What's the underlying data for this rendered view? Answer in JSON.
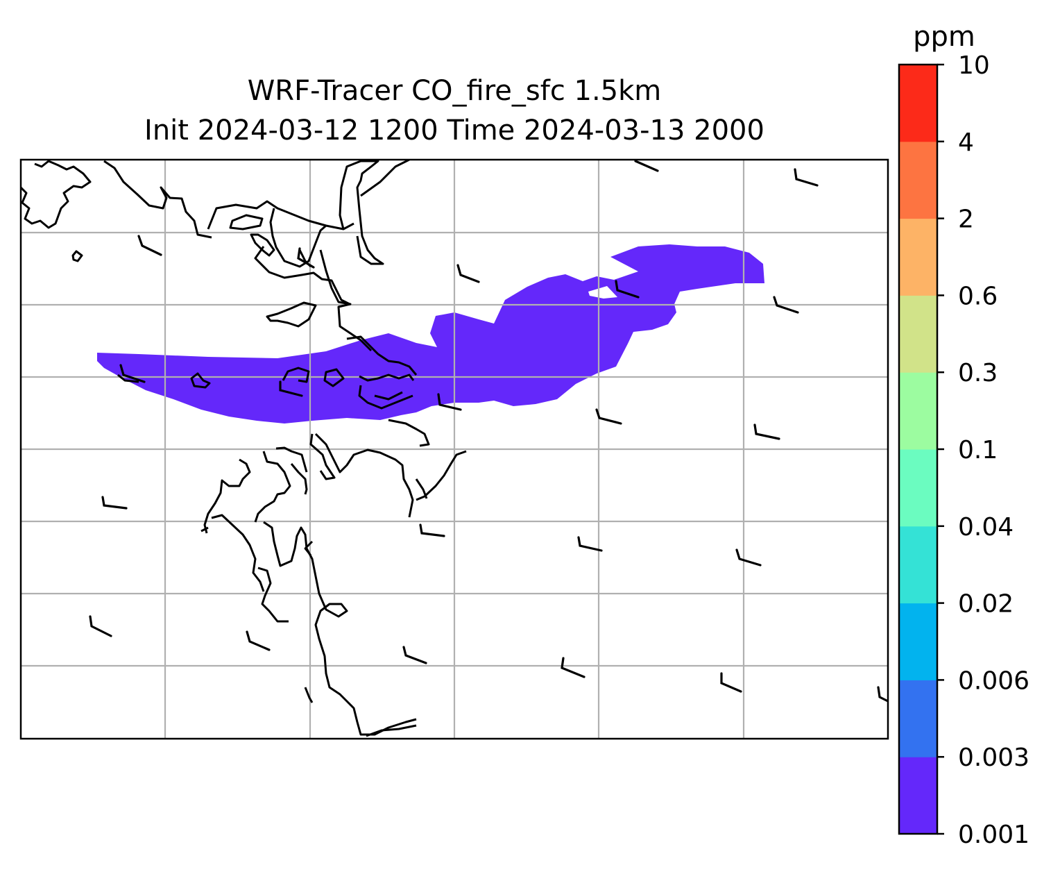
{
  "title_line1": "WRF-Tracer CO_fire_sfc 1.5km",
  "title_line2": "Init 2024-03-12 1200 Time 2024-03-13 2000",
  "colorbar": {
    "label": "ppm",
    "ticks": [
      "0.001",
      "0.003",
      "0.006",
      "0.02",
      "0.04",
      "0.1",
      "0.3",
      "0.6",
      "2",
      "4",
      "10"
    ],
    "colors": [
      "#6428fa",
      "#3372f0",
      "#02b3ee",
      "#34e2d6",
      "#6bfcc0",
      "#9cfca0",
      "#d1e389",
      "#fdb366",
      "#fd7441",
      "#fc2a19"
    ]
  },
  "map": {
    "plume_color": "#6428fa",
    "gridline_color": "#b0b0b0",
    "coastline_color": "#000000",
    "wind_barb_color": "#000000"
  }
}
